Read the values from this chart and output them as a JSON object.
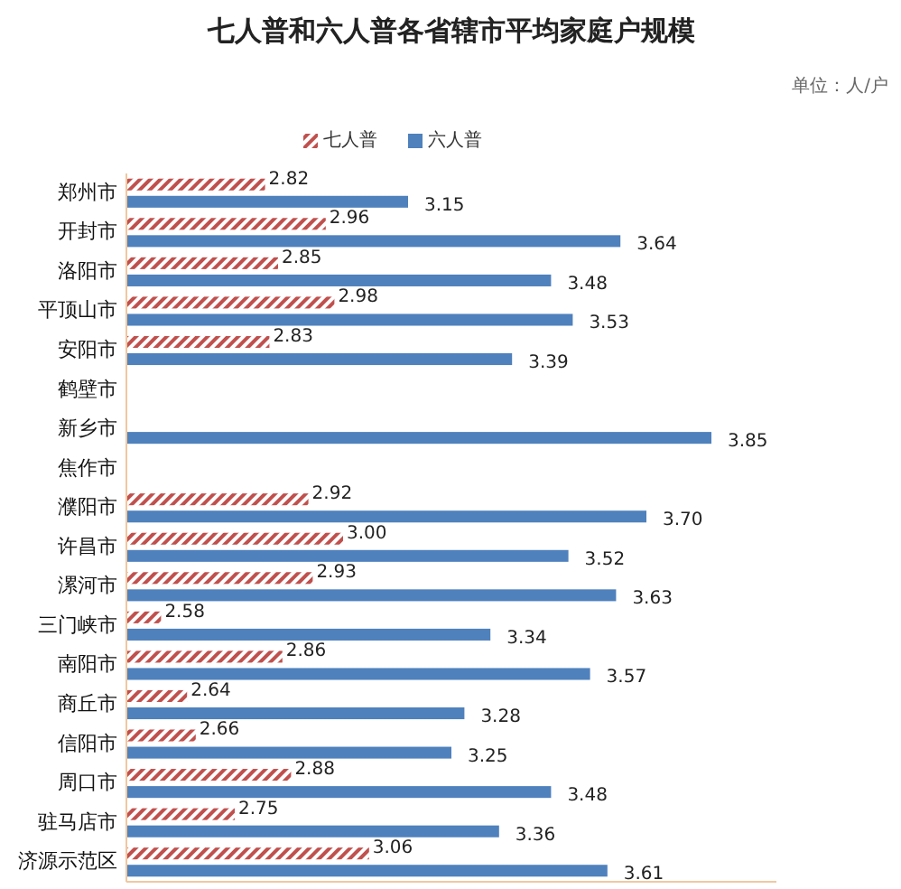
{
  "chart_data": {
    "type": "bar",
    "orientation": "horizontal",
    "title": "七人普和六人普各省辖市平均家庭户规模",
    "annotations": [
      "单位：人/户"
    ],
    "categories": [
      "郑州市",
      "开封市",
      "洛阳市",
      "平顶山市",
      "安阳市",
      "鹤壁市",
      "新乡市",
      "焦作市",
      "濮阳市",
      "许昌市",
      "漯河市",
      "三门峡市",
      "南阳市",
      "商丘市",
      "信阳市",
      "周口市",
      "驻马店市",
      "济源示范区"
    ],
    "series": [
      {
        "name": "七人普",
        "color": "#c0504d",
        "values": [
          2.82,
          2.96,
          2.85,
          2.98,
          2.83,
          null,
          null,
          null,
          2.92,
          3.0,
          2.93,
          2.58,
          2.86,
          2.64,
          2.66,
          2.88,
          2.75,
          3.06
        ],
        "value_labels": [
          "2.82",
          "2.96",
          "2.85",
          "2.98",
          "2.83",
          null,
          null,
          null,
          "2.92",
          "3.00",
          "2.93",
          "2.58",
          "2.86",
          "2.64",
          "2.66",
          "2.88",
          "2.75",
          "3.06"
        ]
      },
      {
        "name": "六人普",
        "color": "#4f81bd",
        "values": [
          3.15,
          3.64,
          3.48,
          3.53,
          3.39,
          null,
          3.85,
          null,
          3.7,
          3.52,
          3.63,
          3.34,
          3.57,
          3.28,
          3.25,
          3.48,
          3.36,
          3.61
        ],
        "value_labels": [
          "3.15",
          "3.64",
          "3.48",
          "3.53",
          "3.39",
          null,
          "3.85",
          null,
          "3.70",
          "3.52",
          "3.63",
          "3.34",
          "3.57",
          "3.28",
          "3.25",
          "3.48",
          "3.36",
          "3.61"
        ]
      }
    ],
    "xlim": [
      2.5,
      4.0
    ],
    "tick_labels": "y",
    "legend": "top"
  }
}
